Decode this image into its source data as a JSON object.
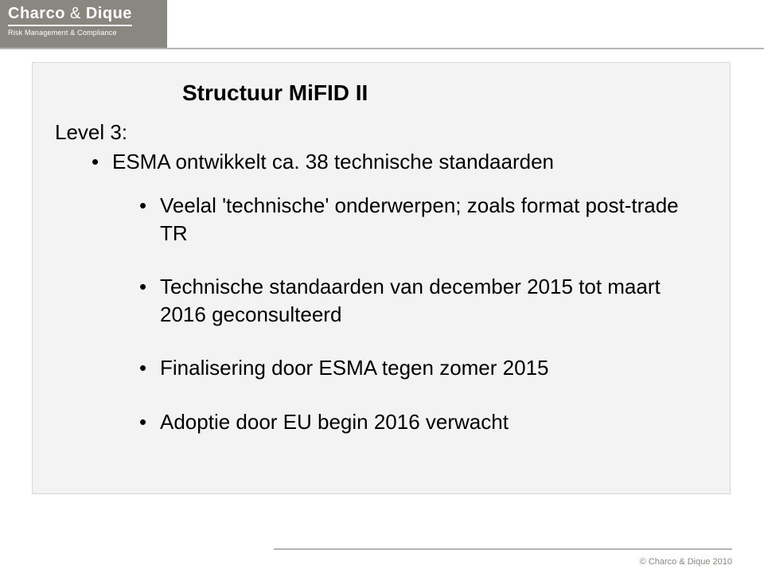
{
  "logo": {
    "name_bold1": "Charco",
    "name_amp": " & ",
    "name_bold2": "Dique",
    "tagline": "Risk Management & Compliance"
  },
  "title": "Structuur MiFID II",
  "level_label": "Level 3:",
  "bullets": {
    "main": "ESMA ontwikkelt ca. 38 technische standaarden",
    "subs": [
      "Veelal 'technische' onderwerpen; zoals format post-trade TR",
      "Technische standaarden van december 2015 tot maart 2016 geconsulteerd",
      "Finalisering door ESMA tegen zomer 2015",
      "Adoptie door EU begin 2016 verwacht"
    ]
  },
  "footer": {
    "copyright": "© Charco & Dique 2010"
  },
  "colors": {
    "logo_bg": "#8a8680",
    "rule": "#b5b5b5",
    "content_bg": "#f3f3f3",
    "text": "#000000",
    "footer_text": "#8a8680"
  }
}
